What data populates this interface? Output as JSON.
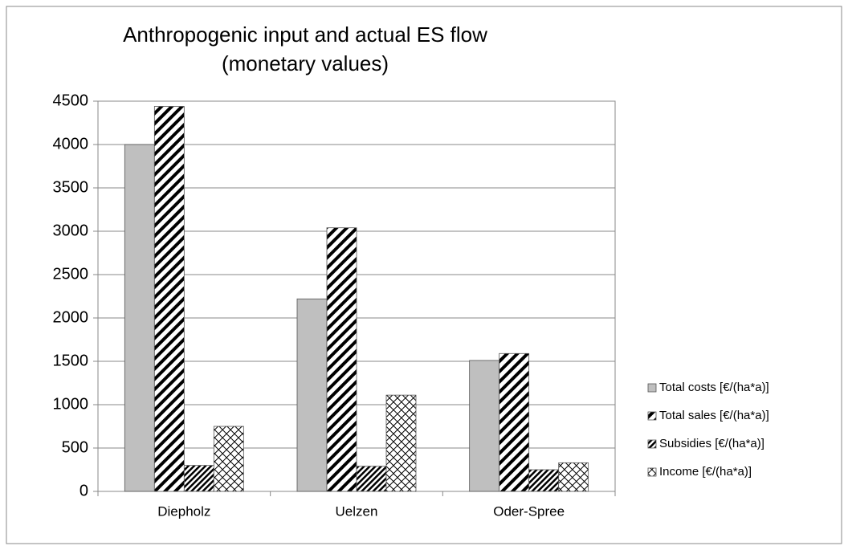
{
  "chart_data": {
    "type": "bar",
    "title": [
      "Anthropogenic input and actual ES flow",
      "(monetary values)"
    ],
    "categories": [
      "Diepholz",
      "Uelzen",
      "Oder-Spree"
    ],
    "series": [
      {
        "name": "Total costs [€/(ha*a)]",
        "color": "#bfbfbf",
        "values": [
          4000,
          2220,
          1510
        ]
      },
      {
        "name": "Total sales [€/(ha*a)]",
        "color": "#000000",
        "values": [
          4440,
          3040,
          1590
        ]
      },
      {
        "name": "Subsidies [€/(ha*a)]",
        "color": "#000000",
        "values": [
          300,
          290,
          250
        ]
      },
      {
        "name": "Income [€/(ha*a)]",
        "color": "#000000",
        "values": [
          750,
          1110,
          330
        ]
      }
    ],
    "ylim": [
      0,
      4500
    ],
    "yticks": [
      0,
      500,
      1000,
      1500,
      2000,
      2500,
      3000,
      3500,
      4000,
      4500
    ],
    "grid": true,
    "legend": "right"
  }
}
